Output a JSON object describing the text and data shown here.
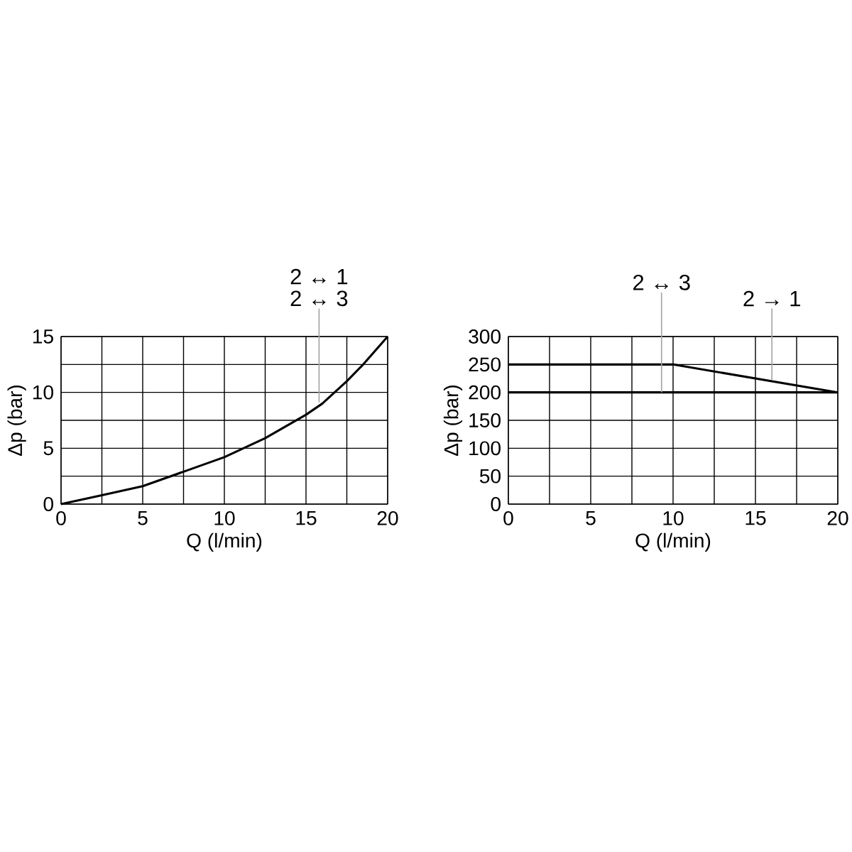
{
  "chart_data": [
    {
      "type": "line",
      "xlabel": "Q (l/min)",
      "ylabel": "Δp (bar)",
      "x": [
        0,
        2.5,
        5,
        7.5,
        10,
        12.5,
        15,
        16,
        17.5,
        18.5,
        20
      ],
      "series": [
        {
          "color": "#000000",
          "values": [
            0,
            0.8,
            1.6,
            2.9,
            4.2,
            5.9,
            8.0,
            9.0,
            11.0,
            12.5,
            15
          ]
        }
      ],
      "xlim": [
        0,
        20
      ],
      "ylim": [
        0,
        15
      ],
      "xticks": [
        0,
        {
          "value": 2.5,
          "label": null
        },
        5,
        {
          "value": 7.5,
          "label": null
        },
        10,
        {
          "value": 12.5,
          "label": null
        },
        15,
        {
          "value": 17.5,
          "label": null
        },
        20
      ],
      "yticks": [
        0,
        {
          "value": 2.5,
          "label": null
        },
        5,
        {
          "value": 7.5,
          "label": null
        },
        10,
        {
          "value": 12.5,
          "label": null
        },
        15
      ],
      "grid": true,
      "annotations": [
        {
          "text": "2 ↔ 1",
          "x": 15.8,
          "y": 9.1
        },
        {
          "text": "2 ↔ 3",
          "x": 15.8,
          "y": 9.1
        }
      ]
    },
    {
      "type": "line",
      "xlabel": "Q (l/min)",
      "ylabel": "Δp (bar)",
      "series": [
        {
          "color": "#000000",
          "x": [
            0,
            10,
            20
          ],
          "values": [
            250,
            250,
            200
          ]
        }
      ],
      "ref_lines": [
        {
          "axis": "y",
          "value": 200,
          "color": "#000000"
        }
      ],
      "xlim": [
        0,
        20
      ],
      "ylim": [
        0,
        300
      ],
      "xticks": [
        0,
        {
          "value": 2.5,
          "label": null
        },
        5,
        {
          "value": 7.5,
          "label": null
        },
        10,
        {
          "value": 12.5,
          "label": null
        },
        15,
        {
          "value": 17.5,
          "label": null
        },
        20
      ],
      "yticks": [
        0,
        50,
        100,
        150,
        200,
        250,
        300
      ],
      "grid": true,
      "annotations": [
        {
          "text": "2 ↔ 3",
          "x": 9.3,
          "y": 200
        },
        {
          "text": "2 → 1",
          "x": 16,
          "y": 222
        }
      ]
    }
  ]
}
